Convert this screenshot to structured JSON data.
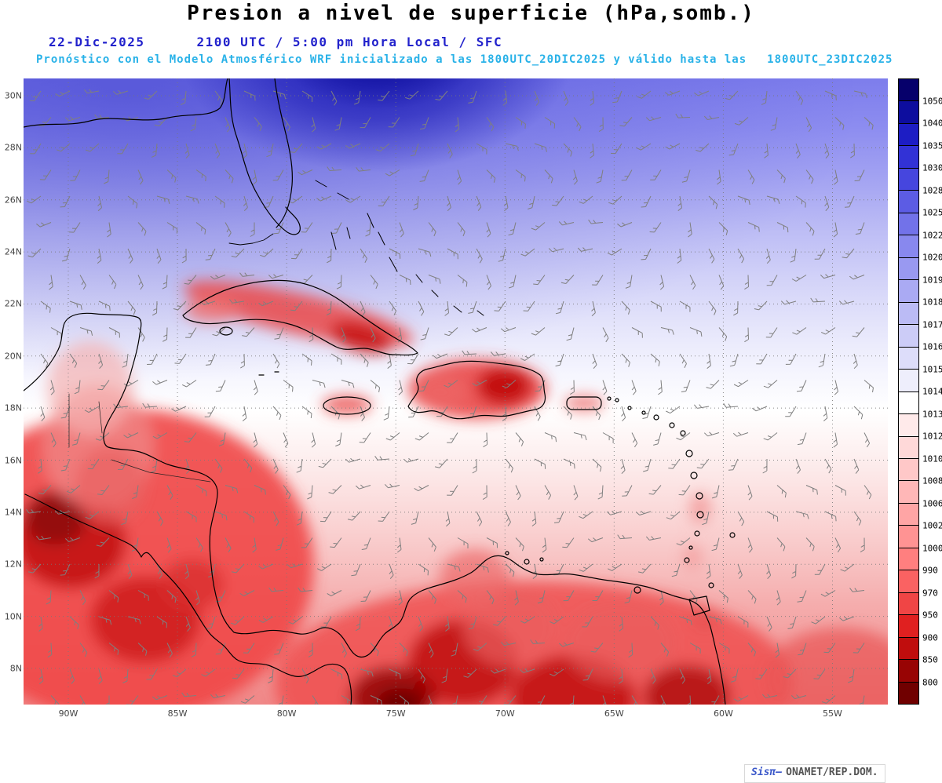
{
  "header": {
    "title": "Presion a nivel de superficie (hPa,somb.)",
    "date": "22-Dic-2025",
    "time": "2100 UTC / 5:00 pm Hora Local / SFC",
    "forecast_line": "Pronóstico con el Modelo Atmosférico WRF inicializado a las 1800UTC_20DIC2025 y válido hasta las",
    "valid_until": "1800UTC_23DIC2025"
  },
  "map": {
    "lat_labels": [
      "30N",
      "28N",
      "26N",
      "24N",
      "22N",
      "20N",
      "18N",
      "16N",
      "14N",
      "12N",
      "10N",
      "8N"
    ],
    "lon_labels": [
      "90W",
      "85W",
      "80W",
      "75W",
      "70W",
      "65W",
      "60W",
      "55W"
    ]
  },
  "colorbar": {
    "unit": "hPa",
    "tick_labels": [
      "1050",
      "1040",
      "1035",
      "1030",
      "1028",
      "1025",
      "1022",
      "1020",
      "1019",
      "1018",
      "1017",
      "1016",
      "1015",
      "1014",
      "1013",
      "1012",
      "1010",
      "1008",
      "1006",
      "1002",
      "1000",
      "990",
      "970",
      "950",
      "900",
      "850",
      "800"
    ],
    "colors_top_to_bottom": [
      "#06006b",
      "#0d0d9e",
      "#1d1dc4",
      "#3232d6",
      "#4646de",
      "#5c5ce4",
      "#7272e9",
      "#8888ee",
      "#9999f1",
      "#aaaaf3",
      "#bbbbf5",
      "#ccccf7",
      "#ddddfa",
      "#eeeefc",
      "#ffffff",
      "#ffeaea",
      "#ffd9d9",
      "#ffc8c8",
      "#ffb7b7",
      "#ffa5a5",
      "#ff9393",
      "#ff7f7f",
      "#fa6262",
      "#f04545",
      "#e02020",
      "#c00d0d",
      "#980404",
      "#700000"
    ]
  },
  "credit": {
    "prefix": "Sisπ–",
    "text": "ONAMET/REP.DOM."
  }
}
